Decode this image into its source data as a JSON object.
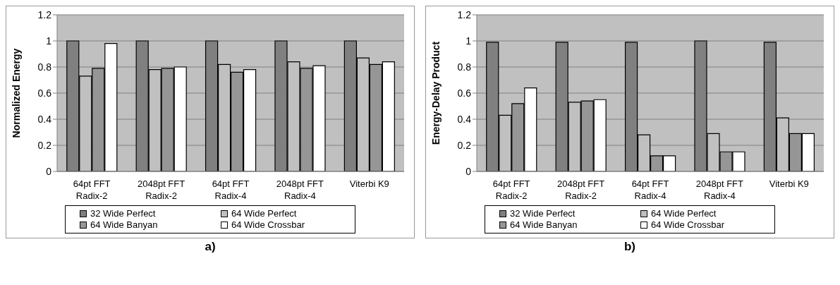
{
  "chart_data": [
    {
      "type": "bar",
      "title": "a)",
      "ylabel": "Normalized Energy",
      "categories": [
        "64pt FFT Radix-2",
        "2048pt FFT Radix-2",
        "64pt FFT Radix-4",
        "2048pt FFT Radix-4",
        "Viterbi K9"
      ],
      "series": [
        {
          "name": "32 Wide Perfect",
          "color": "#808080",
          "values": [
            1,
            1,
            1,
            1,
            1
          ]
        },
        {
          "name": "64 Wide Perfect",
          "color": "#c0c0c0",
          "values": [
            0.73,
            0.78,
            0.82,
            0.84,
            0.87
          ]
        },
        {
          "name": "64 Wide Banyan",
          "color": "#969696",
          "values": [
            0.79,
            0.79,
            0.76,
            0.79,
            0.82
          ]
        },
        {
          "name": "64 Wide Crossbar",
          "color": "#ffffff",
          "values": [
            0.98,
            0.8,
            0.78,
            0.81,
            0.84
          ]
        }
      ],
      "ylim": [
        0,
        1.2
      ],
      "yticks": [
        0,
        0.2,
        0.4,
        0.6,
        0.8,
        1,
        1.2
      ],
      "grid": "y",
      "legend": "bottom"
    },
    {
      "type": "bar",
      "title": "b)",
      "ylabel": "Energy-Delay Product",
      "categories": [
        "64pt FFT Radix-2",
        "2048pt FFT Radix-2",
        "64pt FFT Radix-4",
        "2048pt FFT Radix-4",
        "Viterbi K9"
      ],
      "series": [
        {
          "name": "32 Wide Perfect",
          "color": "#808080",
          "values": [
            0.99,
            0.99,
            0.99,
            1,
            0.99
          ]
        },
        {
          "name": "64 Wide Perfect",
          "color": "#c0c0c0",
          "values": [
            0.43,
            0.53,
            0.28,
            0.29,
            0.41
          ]
        },
        {
          "name": "64 Wide Banyan",
          "color": "#969696",
          "values": [
            0.52,
            0.54,
            0.12,
            0.15,
            0.29
          ]
        },
        {
          "name": "64 Wide Crossbar",
          "color": "#ffffff",
          "values": [
            0.64,
            0.55,
            0.12,
            0.15,
            0.29
          ]
        }
      ],
      "ylim": [
        0,
        1.2
      ],
      "yticks": [
        0,
        0.2,
        0.4,
        0.6,
        0.8,
        1,
        1.2
      ],
      "grid": "y",
      "legend": "bottom"
    }
  ]
}
